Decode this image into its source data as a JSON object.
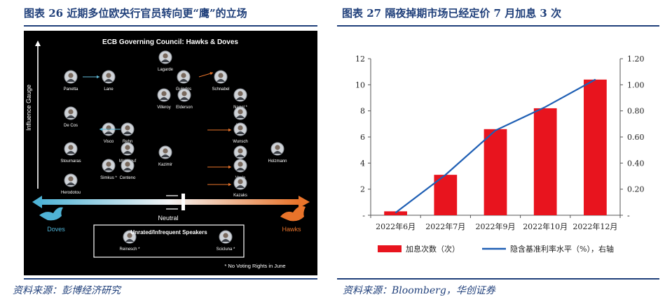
{
  "left_panel": {
    "title": "图表 26   近期多位欧央行官员转向更“鹰”的立场",
    "source": "资料来源：彭博经济研究",
    "figure": {
      "heading": "ECB Governing Council: Hawks & Doves",
      "y_axis_label": "Influence Gauge",
      "doves_label": "Doves",
      "hawks_label": "Hawks",
      "neutral_label": "Neutral",
      "box_title": "Unrated/Infrequent Speakers",
      "footnote": "* No Voting Rights in June",
      "members": [
        {
          "name": "Lagarde"
        },
        {
          "name": "Panetta"
        },
        {
          "name": "Lane"
        },
        {
          "name": "Guindos"
        },
        {
          "name": "Schnabel"
        },
        {
          "name": "Villeroy"
        },
        {
          "name": "Elderson"
        },
        {
          "name": "Nagel",
          "mark": "*"
        },
        {
          "name": "De Cos"
        },
        {
          "name": "Knot"
        },
        {
          "name": "Visco"
        },
        {
          "name": "Rehn"
        },
        {
          "name": "Wunsch"
        },
        {
          "name": "Stournaras"
        },
        {
          "name": "Makhlouf"
        },
        {
          "name": "Kazimir"
        },
        {
          "name": "Muller"
        },
        {
          "name": "Holzmann"
        },
        {
          "name": "Simkus",
          "mark": "*"
        },
        {
          "name": "Centeno"
        },
        {
          "name": "Vasle"
        },
        {
          "name": "Herodotou"
        },
        {
          "name": "Kazaks"
        },
        {
          "name": "Reinesch",
          "mark": "*"
        },
        {
          "name": "Scicluna",
          "mark": "*"
        }
      ],
      "colors": {
        "doves": "#5fb8d6",
        "hawks": "#e8732a",
        "background": "#000000"
      }
    }
  },
  "right_panel": {
    "title": "图表 27   隔夜掉期市场已经定价 7 月加息 3 次",
    "source": "资料来源：Bloomberg，华创证券",
    "chart_data": {
      "type": "bar",
      "categories": [
        "2022年6月",
        "2022年7月",
        "2022年9月",
        "2022年10月",
        "2022年12月"
      ],
      "series": [
        {
          "name": "加息次数（次）",
          "type": "bar",
          "axis": "left",
          "color": "#e8141e",
          "values": [
            0.3,
            3.1,
            6.6,
            8.2,
            10.4
          ]
        },
        {
          "name": "隐含基准利率水平（%），右轴",
          "type": "line",
          "axis": "right",
          "color": "#1f5fb4",
          "values": [
            0.02,
            0.31,
            0.65,
            0.83,
            1.04
          ]
        }
      ],
      "y_left": {
        "min": 0,
        "max": 12,
        "ticks": [
          "-",
          "2",
          "4",
          "6",
          "8",
          "10",
          "12"
        ]
      },
      "y_right": {
        "min": 0,
        "max": 1.2,
        "ticks": [
          "-",
          "0.20",
          "0.40",
          "0.60",
          "0.80",
          "1.00",
          "1.20"
        ]
      },
      "grid": false,
      "legend": "bottom"
    }
  }
}
